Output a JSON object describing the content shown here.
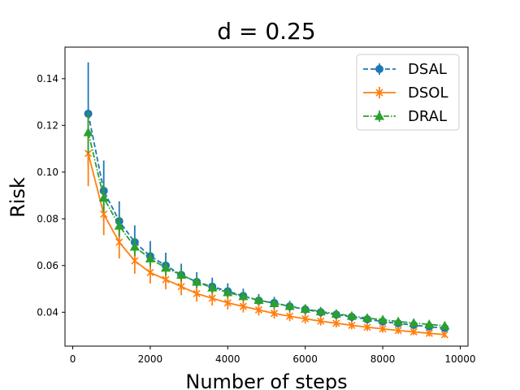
{
  "chart_data": {
    "type": "line",
    "title": "d = 0.25",
    "xlabel": "Number of steps",
    "ylabel": "Risk",
    "xlim": [
      -200,
      10200
    ],
    "ylim": [
      0.0255,
      0.1535
    ],
    "x_ticks": [
      0,
      2000,
      4000,
      6000,
      8000,
      10000
    ],
    "x_tick_labels": [
      "0",
      "2000",
      "4000",
      "6000",
      "8000",
      "10000"
    ],
    "y_ticks": [
      0.04,
      0.06,
      0.08,
      0.1,
      0.12,
      0.14
    ],
    "y_tick_labels": [
      "0.04",
      "0.06",
      "0.08",
      "0.10",
      "0.12",
      "0.14"
    ],
    "legend_position": "top-right",
    "x": [
      400,
      800,
      1200,
      1600,
      2000,
      2400,
      2800,
      3200,
      3600,
      4000,
      4400,
      4800,
      5200,
      5600,
      6000,
      6400,
      6800,
      7200,
      7600,
      8000,
      8400,
      8800,
      9200,
      9600
    ],
    "series": [
      {
        "name": "DSAL",
        "color": "#1f77b4",
        "linestyle": "dashed",
        "marker": "circle",
        "values": [
          0.125,
          0.092,
          0.079,
          0.07,
          0.064,
          0.06,
          0.056,
          0.053,
          0.051,
          0.049,
          0.047,
          0.045,
          0.044,
          0.0425,
          0.0412,
          0.04,
          0.039,
          0.038,
          0.037,
          0.036,
          0.0352,
          0.0345,
          0.0338,
          0.0332
        ],
        "errors": [
          0.022,
          0.013,
          0.0085,
          0.0072,
          0.0065,
          0.0055,
          0.0048,
          0.0042,
          0.0038,
          0.0034,
          0.0031,
          0.0028,
          0.0026,
          0.0024,
          0.0022,
          0.0021,
          0.002,
          0.0019,
          0.0018,
          0.0017,
          0.0016,
          0.0016,
          0.0015,
          0.0015
        ]
      },
      {
        "name": "DSOL",
        "color": "#ff7f0e",
        "linestyle": "solid",
        "marker": "x",
        "values": [
          0.108,
          0.082,
          0.07,
          0.062,
          0.057,
          0.054,
          0.051,
          0.048,
          0.046,
          0.044,
          0.0425,
          0.041,
          0.0395,
          0.0383,
          0.0372,
          0.0362,
          0.0353,
          0.0344,
          0.0336,
          0.0329,
          0.0322,
          0.0316,
          0.031,
          0.0304
        ],
        "errors": [
          0.014,
          0.009,
          0.007,
          0.0055,
          0.0047,
          0.0042,
          0.0037,
          0.0034,
          0.0031,
          0.0028,
          0.0026,
          0.0024,
          0.0022,
          0.0021,
          0.002,
          0.0019,
          0.0018,
          0.0017,
          0.0016,
          0.0016,
          0.0015,
          0.0014,
          0.0014,
          0.0013
        ]
      },
      {
        "name": "DRAL",
        "color": "#2ca02c",
        "linestyle": "dashdot",
        "marker": "triangle",
        "values": [
          0.117,
          0.089,
          0.077,
          0.068,
          0.063,
          0.059,
          0.056,
          0.053,
          0.0505,
          0.0485,
          0.0468,
          0.0452,
          0.0438,
          0.0426,
          0.0414,
          0.0403,
          0.0393,
          0.0384,
          0.0375,
          0.0368,
          0.036,
          0.0354,
          0.0348,
          0.0342
        ],
        "errors": [
          0.009,
          0.006,
          0.0045,
          0.0038,
          0.0033,
          0.003,
          0.0027,
          0.0025,
          0.0023,
          0.0021,
          0.002,
          0.0019,
          0.0018,
          0.0017,
          0.0016,
          0.0015,
          0.0015,
          0.0014,
          0.0014,
          0.0013,
          0.0013,
          0.0012,
          0.0012,
          0.0012
        ]
      }
    ]
  }
}
